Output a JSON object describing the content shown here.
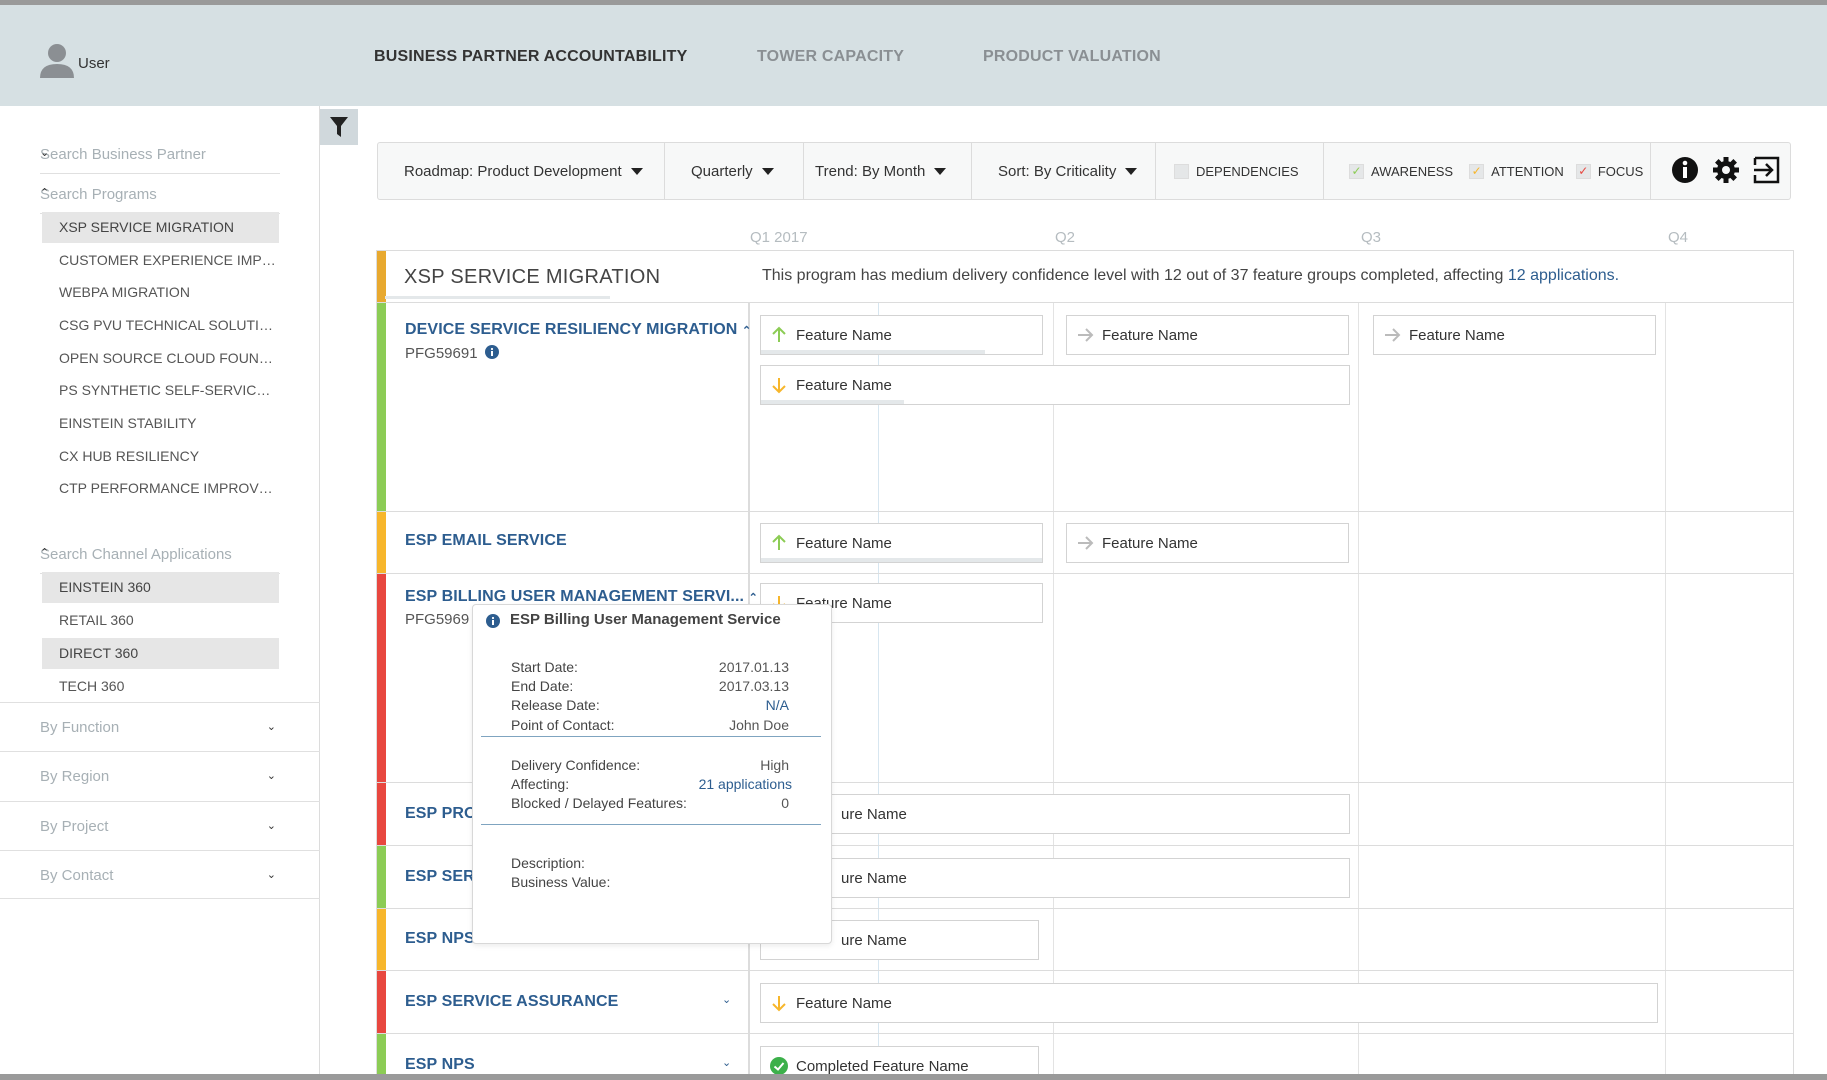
{
  "header": {
    "user": "User",
    "tabs": [
      "BUSINESS PARTNER ACCOUNTABILITY",
      "TOWER CAPACITY",
      "PRODUCT VALUATION"
    ]
  },
  "sidebar": {
    "search_business_partner": "Search Business Partner",
    "search_programs": "Search Programs",
    "programs": [
      "XSP SERVICE MIGRATION",
      "CUSTOMER EXPERIENCE IMPRO...",
      "WEBPA MIGRATION",
      "CSG PVU TECHNICAL SOLUTION",
      "OPEN SOURCE CLOUD FOUND...",
      "PS SYNTHETIC SELF-SERVICES C...",
      "EINSTEIN STABILITY",
      "CX HUB RESILIENCY",
      "CTP PERFORMANCE IMPROVEM..."
    ],
    "search_channel_apps": "Search Channel Applications",
    "apps": [
      "EINSTEIN 360",
      "RETAIL 360",
      "DIRECT 360",
      "TECH 360"
    ],
    "sections": [
      "By Function",
      "By Region",
      "By Project",
      "By Contact"
    ]
  },
  "toolbar": {
    "roadmap": "Roadmap: Product Development",
    "period": "Quarterly",
    "trend": "Trend: By Month",
    "sort": "Sort: By Criticality",
    "dependencies": "DEPENDENCIES",
    "awareness": "AWARENESS",
    "attention": "ATTENTION",
    "focus": "FOCUS"
  },
  "quarters": [
    "Q1 2017",
    "Q2",
    "Q3",
    "Q4"
  ],
  "program": {
    "title": "XSP SERVICE MIGRATION",
    "summary": "This program has medium delivery confidence level with 12 out of 37 feature groups completed, affecting ",
    "summary_link": "12 applications."
  },
  "rows": [
    {
      "title": "DEVICE SERVICE RESILIENCY MIGRATION",
      "sub": "PFG59691"
    },
    {
      "title": "ESP EMAIL SERVICE"
    },
    {
      "title": "ESP BILLING USER MANAGEMENT SERVI...",
      "sub": "PFG5969"
    },
    {
      "title": "ESP PROI"
    },
    {
      "title": "ESP SERV"
    },
    {
      "title": "ESP NPS"
    },
    {
      "title": "ESP SERVICE ASSURANCE"
    },
    {
      "title": "ESP NPS"
    }
  ],
  "features": {
    "name": "Feature Name",
    "partial": "Feature Name",
    "partial2": "ure Name",
    "completed": "Completed Feature Name"
  },
  "popup": {
    "title": "ESP Billing User Management Service",
    "start_label": "Start Date:",
    "start": "2017.01.13",
    "end_label": "End Date:",
    "end": "2017.03.13",
    "release_label": "Release Date:",
    "release": "N/A",
    "contact_label": "Point of Contact:",
    "contact": "John Doe",
    "confidence_label": "Delivery Confidence:",
    "confidence": "High",
    "affecting_label": "Affecting:",
    "affecting": "21 applications",
    "blocked_label": "Blocked / Delayed Features:",
    "blocked": "0",
    "description_label": "Description:",
    "business_value_label": "Business Value:"
  },
  "colors": {
    "green": "#8ccc55",
    "yellow": "#f7b62b",
    "red": "#e8473f",
    "orange": "#e8a92f",
    "link": "#2d5d8f"
  }
}
